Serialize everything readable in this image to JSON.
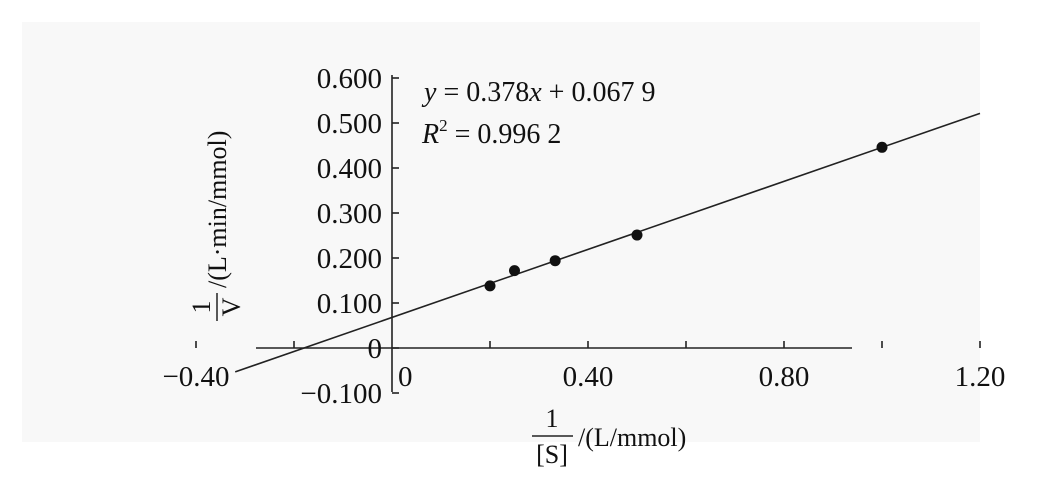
{
  "chart_data": {
    "type": "scatter",
    "title": "",
    "x_range": [
      -0.4,
      1.4
    ],
    "y_range": [
      -0.1,
      0.6
    ],
    "x_ticks": [
      {
        "value": -0.4,
        "label": "−0.40"
      },
      {
        "value": 0.4,
        "label": "0.40"
      },
      {
        "value": 0.8,
        "label": "0.80"
      },
      {
        "value": 1.2,
        "label": "1.20"
      }
    ],
    "x_origin_label": "0",
    "y_ticks": [
      {
        "value": -0.1,
        "label": "−0.100"
      },
      {
        "value": 0,
        "label": "0"
      },
      {
        "value": 0.1,
        "label": "0.100"
      },
      {
        "value": 0.2,
        "label": "0.200"
      },
      {
        "value": 0.3,
        "label": "0.300"
      },
      {
        "value": 0.4,
        "label": "0.400"
      },
      {
        "value": 0.5,
        "label": "0.500"
      },
      {
        "value": 0.6,
        "label": "0.600"
      }
    ],
    "xlabel": {
      "numerator": "1",
      "denominator": "[S]",
      "unit": "/(L/mmol)"
    },
    "ylabel": {
      "numerator": "1",
      "denominator": "V",
      "unit": "/(L·min/mmol)"
    },
    "points": [
      {
        "x": 0.2,
        "y": 0.138
      },
      {
        "x": 0.25,
        "y": 0.172
      },
      {
        "x": 0.333,
        "y": 0.194
      },
      {
        "x": 0.5,
        "y": 0.251
      },
      {
        "x": 1.0,
        "y": 0.446
      }
    ],
    "trendline": {
      "slope": 0.378,
      "intercept": 0.0679,
      "x_from": -0.32,
      "x_to": 1.2
    },
    "equation": {
      "y_var": "y",
      "equals": " = 0.378",
      "x_var": "x",
      "rest": " + 0.067 9",
      "r_var": "R",
      "r_sup": "2",
      "r_rest": " = 0.996 2"
    }
  }
}
